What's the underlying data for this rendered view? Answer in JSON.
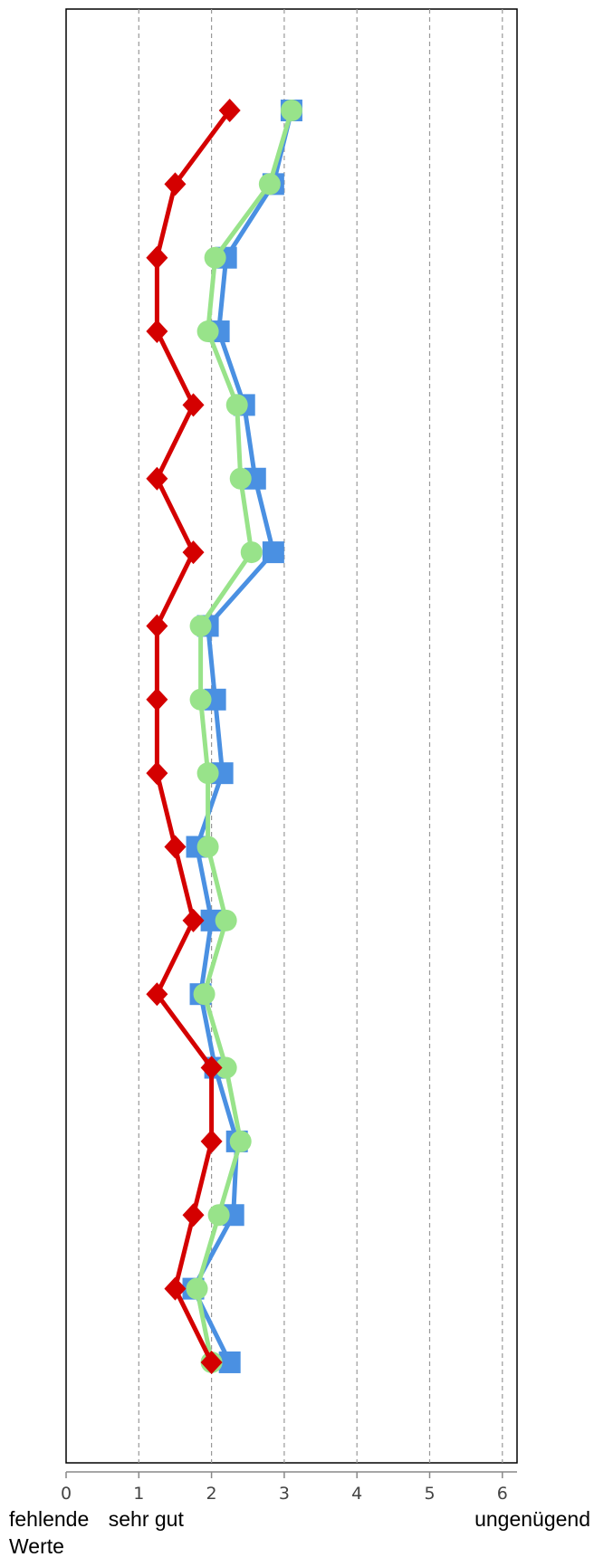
{
  "chart_data": {
    "type": "line",
    "orientation": "vertical-profile",
    "title": "",
    "xlabel": "",
    "ylabel": "",
    "xlim": [
      0,
      6.2
    ],
    "xticks": [
      0,
      1,
      2,
      3,
      4,
      5,
      6
    ],
    "x_category_labels": [
      {
        "x": 0,
        "lines": [
          "fehlende",
          "Werte"
        ]
      },
      {
        "x": 1,
        "lines": [
          "sehr gut"
        ]
      },
      {
        "x": 6,
        "lines": [
          "ungenügend"
        ]
      }
    ],
    "grid": "vertical-dashed",
    "items": 18,
    "series": [
      {
        "name": "",
        "color": "#4a90e2",
        "marker": "square",
        "values": [
          3.1,
          2.85,
          2.2,
          2.1,
          2.45,
          2.6,
          2.85,
          1.95,
          2.05,
          2.15,
          1.8,
          2.0,
          1.85,
          2.05,
          2.35,
          2.3,
          1.75,
          2.25
        ]
      },
      {
        "name": "",
        "color": "#98e38a",
        "marker": "circle",
        "values": [
          3.1,
          2.8,
          2.05,
          1.95,
          2.35,
          2.4,
          2.55,
          1.85,
          1.85,
          1.95,
          1.95,
          2.2,
          1.9,
          2.2,
          2.4,
          2.1,
          1.8,
          2.0
        ]
      },
      {
        "name": "",
        "color": "#d40000",
        "marker": "diamond",
        "values": [
          2.25,
          1.5,
          1.25,
          1.25,
          1.75,
          1.25,
          1.75,
          1.25,
          1.25,
          1.25,
          1.5,
          1.75,
          1.25,
          2.0,
          2.0,
          1.75,
          1.5,
          2.0
        ]
      }
    ]
  }
}
